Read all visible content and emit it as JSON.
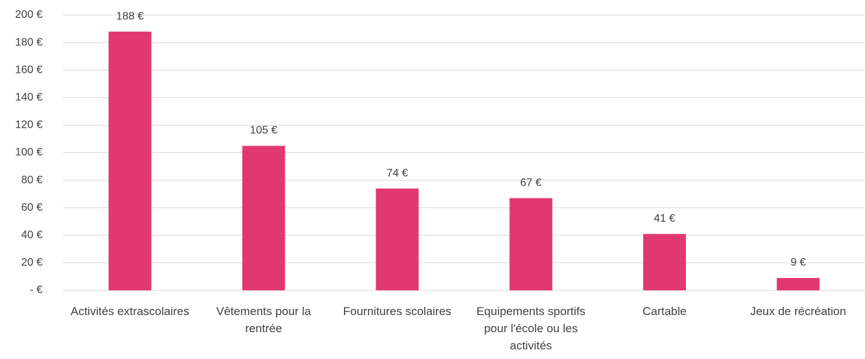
{
  "chart_data": {
    "type": "bar",
    "categories": [
      "Activités extrascolaires",
      "Vêtements pour la rentrée",
      "Fournitures scolaires",
      "Equipements sportifs pour l'école ou les activités",
      "Cartable",
      "Jeux de récréation"
    ],
    "values": [
      188,
      105,
      74,
      67,
      41,
      9
    ],
    "value_labels": [
      "188 €",
      "105 €",
      "74 €",
      "67 €",
      "41 €",
      "9 €"
    ],
    "color": "#e23872",
    "ylim": [
      0,
      200
    ],
    "yticks": [
      {
        "value": 0,
        "label": "- €"
      },
      {
        "value": 20,
        "label": "20 €"
      },
      {
        "value": 40,
        "label": "40 €"
      },
      {
        "value": 60,
        "label": "60 €"
      },
      {
        "value": 80,
        "label": "80 €"
      },
      {
        "value": 100,
        "label": "100 €"
      },
      {
        "value": 120,
        "label": "120 €"
      },
      {
        "value": 140,
        "label": "140 €"
      },
      {
        "value": 160,
        "label": "160 €"
      },
      {
        "value": 180,
        "label": "180 €"
      },
      {
        "value": 200,
        "label": "200 €"
      }
    ],
    "grid": true
  }
}
